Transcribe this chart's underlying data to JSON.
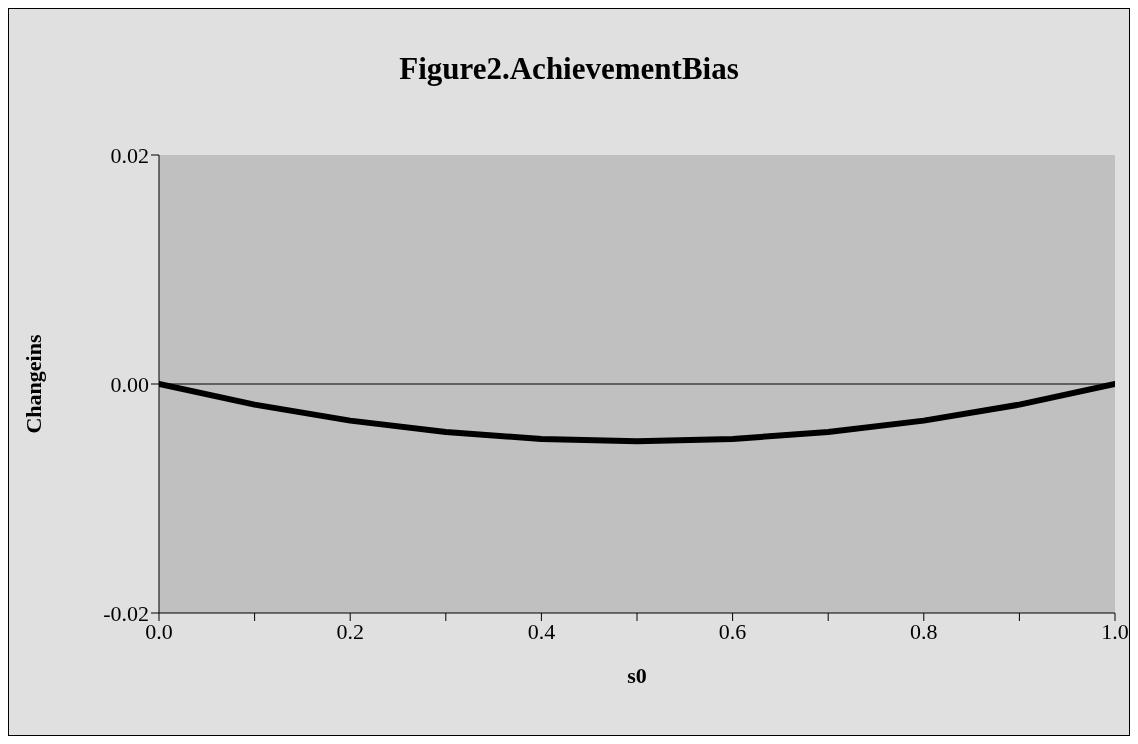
{
  "chart_data": {
    "type": "line",
    "title": "Figure2.AchievementBias",
    "xlabel": "s0",
    "ylabel": "Changeins",
    "x": [
      0,
      0.1,
      0.2,
      0.3,
      0.4,
      0.5,
      0.6,
      0.7,
      0.8,
      0.9,
      1.0
    ],
    "series": [
      {
        "color": "#000000",
        "values": [
          0,
          -0.0018,
          -0.0032,
          -0.0042,
          -0.0048,
          -0.005,
          -0.0048,
          -0.0042,
          -0.0032,
          -0.0018,
          0
        ]
      }
    ],
    "xlim": [
      0,
      1
    ],
    "xticks": [
      {
        "value": 0,
        "label": "0.0"
      },
      {
        "value": 0.1,
        "label": null
      },
      {
        "value": 0.2,
        "label": "0.2"
      },
      {
        "value": 0.3,
        "label": null
      },
      {
        "value": 0.4,
        "label": "0.4"
      },
      {
        "value": 0.5,
        "label": null
      },
      {
        "value": 0.6,
        "label": "0.6"
      },
      {
        "value": 0.7,
        "label": null
      },
      {
        "value": 0.8,
        "label": "0.8"
      },
      {
        "value": 0.9,
        "label": null
      },
      {
        "value": 1.0,
        "label": "1.0"
      }
    ],
    "ylim": [
      -0.02,
      0.02
    ],
    "yticks": [
      {
        "value": -0.02,
        "label": "-0.02"
      },
      {
        "value": 0,
        "label": "0.00"
      },
      {
        "value": 0.02,
        "label": "0.02"
      }
    ],
    "ref_lines": [
      {
        "axis": "y",
        "value": 0,
        "color": "#000000"
      }
    ],
    "grid": false,
    "legend": false,
    "marker": "none",
    "line_style": "solid"
  }
}
